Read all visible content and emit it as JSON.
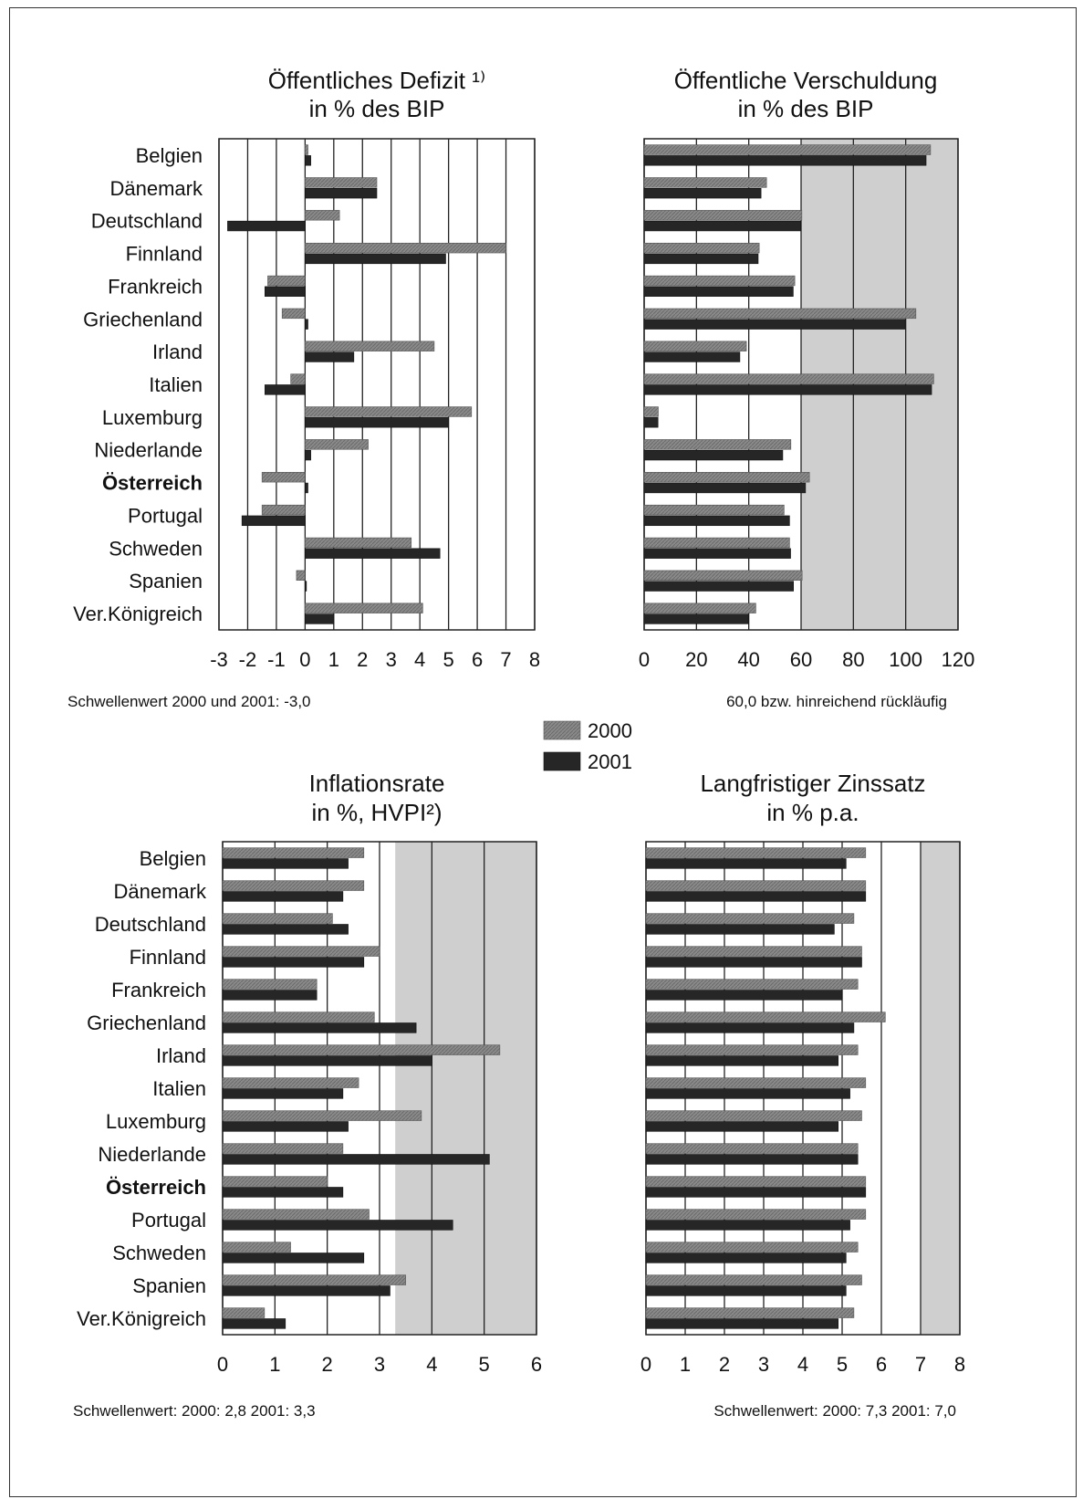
{
  "colors": {
    "series_2000": "#8a8a8a",
    "series_2001": "#262626",
    "threshold_zone": "#cfcfcf",
    "grid": "#222222"
  },
  "legend": {
    "items": [
      "2000",
      "2001"
    ]
  },
  "chart_data": [
    {
      "type": "bar",
      "orientation": "horizontal",
      "title": [
        "Öffentliches Defizit ¹⁾",
        "in % des BIP"
      ],
      "categories": [
        "Belgien",
        "Dänemark",
        "Deutschland",
        "Finnland",
        "Frankreich",
        "Griechenland",
        "Irland",
        "Italien",
        "Luxemburg",
        "Niederlande",
        "Österreich",
        "Portugal",
        "Schweden",
        "Spanien",
        "Ver.Königreich"
      ],
      "bold_category": "Österreich",
      "series": [
        {
          "name": "2000",
          "values": [
            0.1,
            2.5,
            1.2,
            7.0,
            -1.3,
            -0.8,
            4.5,
            -0.5,
            5.8,
            2.2,
            -1.5,
            -1.5,
            3.7,
            -0.3,
            4.1
          ]
        },
        {
          "name": "2001",
          "values": [
            0.2,
            2.5,
            -2.7,
            4.9,
            -1.4,
            0.1,
            1.7,
            -1.4,
            5.0,
            0.2,
            0.1,
            -2.2,
            4.7,
            0.0,
            1.0
          ]
        }
      ],
      "xlim": [
        -3,
        8
      ],
      "xticks": [
        "-3",
        "-2",
        "-1",
        "0",
        "1",
        "2",
        "3",
        "4",
        "5",
        "6",
        "7",
        "8"
      ],
      "shaded_range": null,
      "note": "Schwellenwert 2000 und 2001: -3,0"
    },
    {
      "type": "bar",
      "orientation": "horizontal",
      "title": [
        "Öffentliche Verschuldung",
        "in % des BIP"
      ],
      "categories": [
        "Belgien",
        "Dänemark",
        "Deutschland",
        "Finnland",
        "Frankreich",
        "Griechenland",
        "Irland",
        "Italien",
        "Luxemburg",
        "Niederlande",
        "Österreich",
        "Portugal",
        "Schweden",
        "Spanien",
        "Ver.Königreich"
      ],
      "bold_category": "Österreich",
      "series": [
        {
          "name": "2000",
          "values": [
            109.5,
            46.8,
            60.3,
            44.0,
            57.6,
            103.9,
            39.1,
            110.7,
            5.4,
            56.1,
            63.2,
            53.5,
            55.6,
            60.4,
            42.7
          ]
        },
        {
          "name": "2001",
          "values": [
            107.8,
            44.7,
            59.8,
            43.6,
            57.0,
            99.8,
            36.6,
            109.9,
            5.3,
            53.0,
            61.7,
            55.6,
            56.0,
            57.1,
            39.8
          ]
        }
      ],
      "xlim": [
        0,
        120
      ],
      "xticks": [
        "0",
        "20",
        "40",
        "60",
        "80",
        "100",
        "120"
      ],
      "shaded_range": [
        60,
        120
      ],
      "note": "60,0 bzw. hinreichend rückläufig"
    },
    {
      "type": "bar",
      "orientation": "horizontal",
      "title": [
        "Inflationsrate",
        "in %, HVPI²)"
      ],
      "categories": [
        "Belgien",
        "Dänemark",
        "Deutschland",
        "Finnland",
        "Frankreich",
        "Griechenland",
        "Irland",
        "Italien",
        "Luxemburg",
        "Niederlande",
        "Österreich",
        "Portugal",
        "Schweden",
        "Spanien",
        "Ver.Königreich"
      ],
      "bold_category": "Österreich",
      "series": [
        {
          "name": "2000",
          "values": [
            2.7,
            2.7,
            2.1,
            3.0,
            1.8,
            2.9,
            5.3,
            2.6,
            3.8,
            2.3,
            2.0,
            2.8,
            1.3,
            3.5,
            0.8
          ]
        },
        {
          "name": "2001",
          "values": [
            2.4,
            2.3,
            2.4,
            2.7,
            1.8,
            3.7,
            4.0,
            2.3,
            2.4,
            5.1,
            2.3,
            4.4,
            2.7,
            3.2,
            1.2
          ]
        }
      ],
      "xlim": [
        0,
        6
      ],
      "xticks": [
        "0",
        "1",
        "2",
        "3",
        "4",
        "5",
        "6"
      ],
      "shaded_range": [
        3.3,
        6
      ],
      "note": "Schwellenwert: 2000: 2,8   2001: 3,3"
    },
    {
      "type": "bar",
      "orientation": "horizontal",
      "title": [
        "Langfristiger Zinssatz",
        "in % p.a."
      ],
      "categories": [
        "Belgien",
        "Dänemark",
        "Deutschland",
        "Finnland",
        "Frankreich",
        "Griechenland",
        "Irland",
        "Italien",
        "Luxemburg",
        "Niederlande",
        "Österreich",
        "Portugal",
        "Schweden",
        "Spanien",
        "Ver.Königreich"
      ],
      "bold_category": "Österreich",
      "series": [
        {
          "name": "2000",
          "values": [
            5.6,
            5.6,
            5.3,
            5.5,
            5.4,
            6.1,
            5.4,
            5.6,
            5.5,
            5.4,
            5.6,
            5.6,
            5.4,
            5.5,
            5.3
          ]
        },
        {
          "name": "2001",
          "values": [
            5.1,
            5.6,
            4.8,
            5.5,
            5.0,
            5.3,
            4.9,
            5.2,
            4.9,
            5.4,
            5.6,
            5.2,
            5.1,
            5.1,
            4.9
          ]
        }
      ],
      "xlim": [
        0,
        8
      ],
      "xticks": [
        "0",
        "1",
        "2",
        "3",
        "4",
        "5",
        "6",
        "7",
        "8"
      ],
      "shaded_range": [
        7,
        8
      ],
      "note": "Schwellenwert: 2000: 7,3   2001: 7,0"
    }
  ]
}
